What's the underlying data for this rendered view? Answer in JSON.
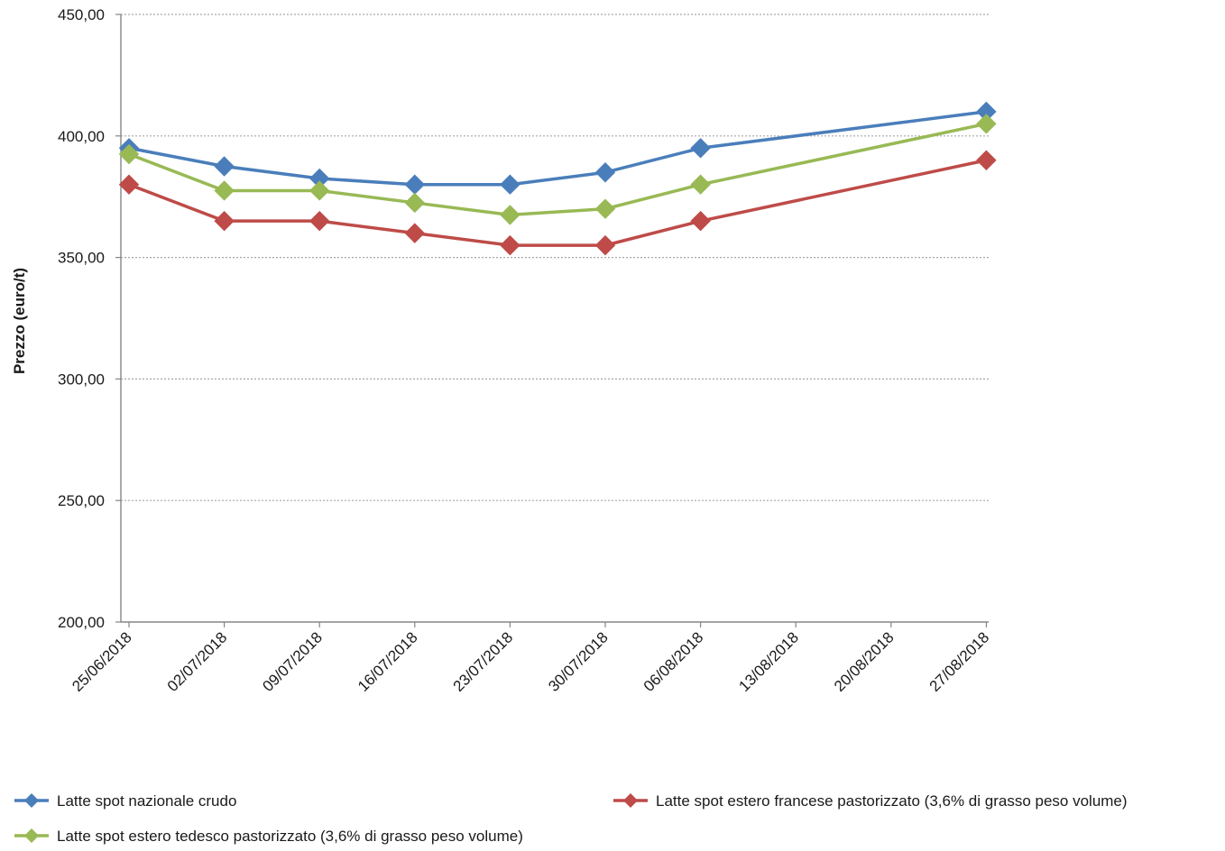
{
  "chart_data": {
    "type": "line",
    "title": "",
    "xlabel": "",
    "ylabel": "Prezzo (euro/t)",
    "ylim": [
      200,
      450
    ],
    "y_ticks": [
      "450,00",
      "400,00",
      "350,00",
      "300,00",
      "250,00",
      "200,00"
    ],
    "grid": true,
    "legend_position": "bottom",
    "categories": [
      "25/06/2018",
      "02/07/2018",
      "09/07/2018",
      "16/07/2018",
      "23/07/2018",
      "30/07/2018",
      "06/08/2018",
      "13/08/2018",
      "20/08/2018",
      "27/08/2018"
    ],
    "series": [
      {
        "name": "Latte spot nazionale crudo",
        "color": "#4a7ebb",
        "values": [
          395,
          387.5,
          382.5,
          380,
          380,
          385,
          395,
          null,
          null,
          410
        ]
      },
      {
        "name": "Latte spot estero francese pastorizzato (3,6% di grasso peso volume)",
        "color": "#be4b48",
        "values": [
          380,
          365,
          365,
          360,
          355,
          355,
          365,
          null,
          null,
          390
        ]
      },
      {
        "name": "Latte spot estero tedesco pastorizzato (3,6% di grasso peso volume)",
        "color": "#98b954",
        "values": [
          392.5,
          377.5,
          377.5,
          372.5,
          367.5,
          370,
          380,
          null,
          null,
          405
        ]
      }
    ]
  }
}
